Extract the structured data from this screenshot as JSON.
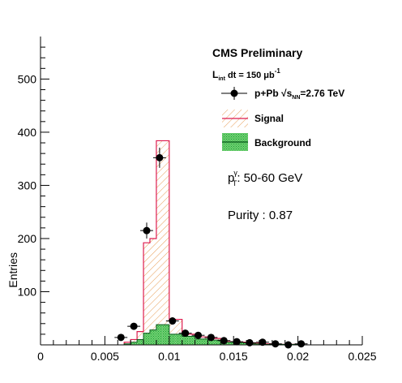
{
  "chart_data": {
    "type": "bar",
    "ylabel": "Entries",
    "xlim": [
      0,
      0.025
    ],
    "ylim": [
      0,
      580
    ],
    "x_ticks": [
      "0",
      "0.005",
      "0.01",
      "0.015",
      "0.02",
      "0.025"
    ],
    "y_ticks": [
      "100",
      "200",
      "300",
      "400",
      "500"
    ],
    "bin_width": 0.0005,
    "signal": {
      "name": "Signal",
      "color": "#dd1c4f",
      "hatch_color": "#e8a05a",
      "bins": [
        {
          "x": 0.0065,
          "total": 5
        },
        {
          "x": 0.007,
          "total": 10
        },
        {
          "x": 0.0075,
          "total": 25
        },
        {
          "x": 0.008,
          "total": 192
        },
        {
          "x": 0.0085,
          "total": 200
        },
        {
          "x": 0.009,
          "total": 384
        },
        {
          "x": 0.0095,
          "total": 384
        },
        {
          "x": 0.01,
          "total": 48
        },
        {
          "x": 0.0105,
          "total": 48
        },
        {
          "x": 0.011,
          "total": 20
        },
        {
          "x": 0.0115,
          "total": 20
        },
        {
          "x": 0.012,
          "total": 15
        },
        {
          "x": 0.0125,
          "total": 15
        },
        {
          "x": 0.013,
          "total": 12
        },
        {
          "x": 0.0135,
          "total": 12
        },
        {
          "x": 0.014,
          "total": 6
        },
        {
          "x": 0.0145,
          "total": 6
        },
        {
          "x": 0.015,
          "total": 5
        },
        {
          "x": 0.0155,
          "total": 5
        },
        {
          "x": 0.016,
          "total": 3
        },
        {
          "x": 0.0165,
          "total": 3
        },
        {
          "x": 0.017,
          "total": 2
        },
        {
          "x": 0.0175,
          "total": 2
        },
        {
          "x": 0.018,
          "total": 1
        },
        {
          "x": 0.0185,
          "total": 1
        },
        {
          "x": 0.019,
          "total": 1
        },
        {
          "x": 0.0195,
          "total": 1
        }
      ]
    },
    "background": {
      "name": "Background",
      "color": "#1a9e3a",
      "fill": "#6fd06f",
      "bins": [
        {
          "x": 0.0065,
          "value": 2
        },
        {
          "x": 0.007,
          "value": 5
        },
        {
          "x": 0.0075,
          "value": 10
        },
        {
          "x": 0.008,
          "value": 22
        },
        {
          "x": 0.0085,
          "value": 28
        },
        {
          "x": 0.009,
          "value": 38
        },
        {
          "x": 0.0095,
          "value": 38
        },
        {
          "x": 0.01,
          "value": 20
        },
        {
          "x": 0.0105,
          "value": 20
        },
        {
          "x": 0.011,
          "value": 16
        },
        {
          "x": 0.0115,
          "value": 16
        },
        {
          "x": 0.012,
          "value": 11
        },
        {
          "x": 0.0125,
          "value": 11
        },
        {
          "x": 0.013,
          "value": 9
        },
        {
          "x": 0.0135,
          "value": 9
        },
        {
          "x": 0.014,
          "value": 5
        },
        {
          "x": 0.0145,
          "value": 5
        },
        {
          "x": 0.015,
          "value": 4
        },
        {
          "x": 0.0155,
          "value": 4
        },
        {
          "x": 0.016,
          "value": 2
        },
        {
          "x": 0.0165,
          "value": 2
        },
        {
          "x": 0.017,
          "value": 1
        },
        {
          "x": 0.0175,
          "value": 1
        },
        {
          "x": 0.018,
          "value": 1
        },
        {
          "x": 0.0185,
          "value": 1
        },
        {
          "x": 0.019,
          "value": 1
        },
        {
          "x": 0.0195,
          "value": 1
        }
      ]
    },
    "data_points": {
      "name": "p+Pb",
      "points": [
        {
          "x": 0.00625,
          "y": 14,
          "err": 4
        },
        {
          "x": 0.00725,
          "y": 35,
          "err": 6
        },
        {
          "x": 0.00825,
          "y": 215,
          "err": 15
        },
        {
          "x": 0.00925,
          "y": 352,
          "err": 19
        },
        {
          "x": 0.01025,
          "y": 45,
          "err": 7
        },
        {
          "x": 0.01125,
          "y": 22,
          "err": 5
        },
        {
          "x": 0.01225,
          "y": 18,
          "err": 4
        },
        {
          "x": 0.01325,
          "y": 14,
          "err": 4
        },
        {
          "x": 0.01425,
          "y": 8,
          "err": 3
        },
        {
          "x": 0.01525,
          "y": 6,
          "err": 2.5
        },
        {
          "x": 0.01625,
          "y": 4,
          "err": 2
        },
        {
          "x": 0.01725,
          "y": 5,
          "err": 2
        },
        {
          "x": 0.01825,
          "y": 2,
          "err": 1.5
        },
        {
          "x": 0.01925,
          "y": 0,
          "err": 0
        },
        {
          "x": 0.02025,
          "y": 2,
          "err": 1.5
        }
      ]
    },
    "legend_placement": "top-right",
    "grid": false
  },
  "annotations": {
    "experiment": "CMS Preliminary",
    "lumi_label": "L",
    "lumi_sub": "int",
    "lumi_text": " dt = 150 μb",
    "lumi_sup": "-1",
    "legend_data_label": "p+Pb  √s",
    "legend_data_sub": "NN",
    "legend_data_energy": "=2.76 TeV",
    "pt_label": "p",
    "pt_sup": "γ",
    "pt_sub": "T",
    "pt_range": ": 50-60 GeV",
    "purity": "Purity : 0.87"
  }
}
